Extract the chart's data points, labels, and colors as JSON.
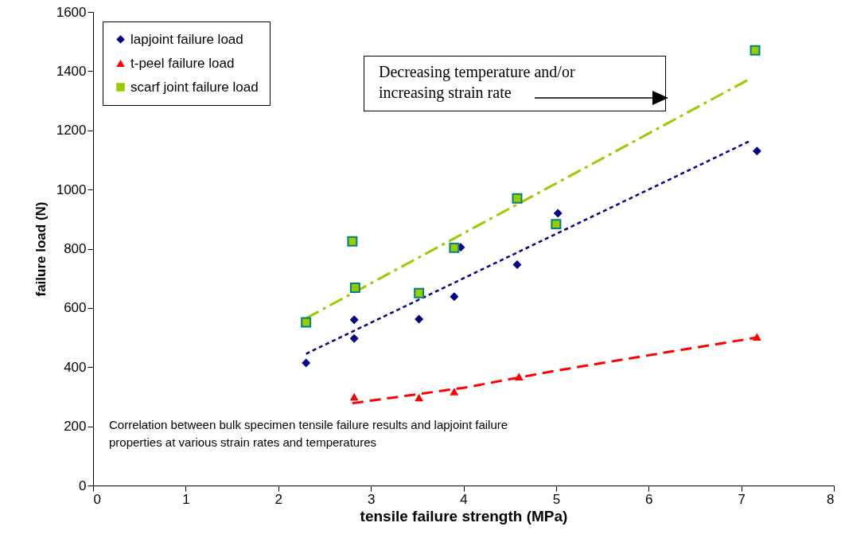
{
  "chart_data": {
    "type": "scatter",
    "xlabel": "tensile failure strength (MPa)",
    "ylabel": "failure load  (N)",
    "xlim": [
      0,
      8
    ],
    "xticks": [
      0,
      1,
      2,
      3,
      4,
      5,
      6,
      7,
      8
    ],
    "ylim": [
      0,
      1600
    ],
    "yticks": [
      0,
      200,
      400,
      600,
      800,
      1000,
      1200,
      1400,
      1600
    ],
    "grid": false,
    "legend": "top left",
    "series": [
      {
        "name": "lapjoint failure load",
        "color": "#000080",
        "marker": "diamond",
        "x": [
          2.3,
          2.82,
          2.82,
          3.52,
          3.9,
          3.97,
          4.58,
          5.02,
          7.17
        ],
        "values": [
          414,
          560,
          497,
          562,
          638,
          805,
          746,
          920,
          1130
        ]
      },
      {
        "name": "t-peel failure load",
        "color": "#ff0000",
        "marker": "triangle",
        "x": [
          2.82,
          3.52,
          3.9,
          4.6,
          7.17
        ],
        "values": [
          300,
          297,
          317,
          368,
          502
        ]
      },
      {
        "name": "scarf joint failure load",
        "color": "#99cc00",
        "marker": "square",
        "x": [
          2.3,
          2.8,
          2.83,
          3.52,
          3.9,
          4.58,
          5.0,
          7.15
        ],
        "values": [
          551,
          825,
          668,
          650,
          803,
          970,
          883,
          1470
        ]
      },
      {
        "type": "line",
        "color": "#000080",
        "line_style": "dotted",
        "marker": "none",
        "x": [
          2.3,
          7.1
        ],
        "values": [
          445,
          1165
        ]
      },
      {
        "type": "line",
        "color": "#ff0000",
        "line_style": "dashed",
        "marker": "none",
        "x": [
          2.8,
          4,
          5,
          6,
          7.17
        ],
        "values": [
          278,
          330,
          388,
          440,
          500
        ]
      },
      {
        "type": "line",
        "color": "#99cc00",
        "line_style": "dashdot",
        "marker": "none",
        "x": [
          2.3,
          7.1
        ],
        "values": [
          565,
          1375
        ]
      }
    ],
    "annotations": [
      "Decreasing temperature and/or increasing strain rate",
      "Correlation between bulk specimen tensile failure results and lapjoint failure properties at various strain rates and temperatures"
    ]
  }
}
